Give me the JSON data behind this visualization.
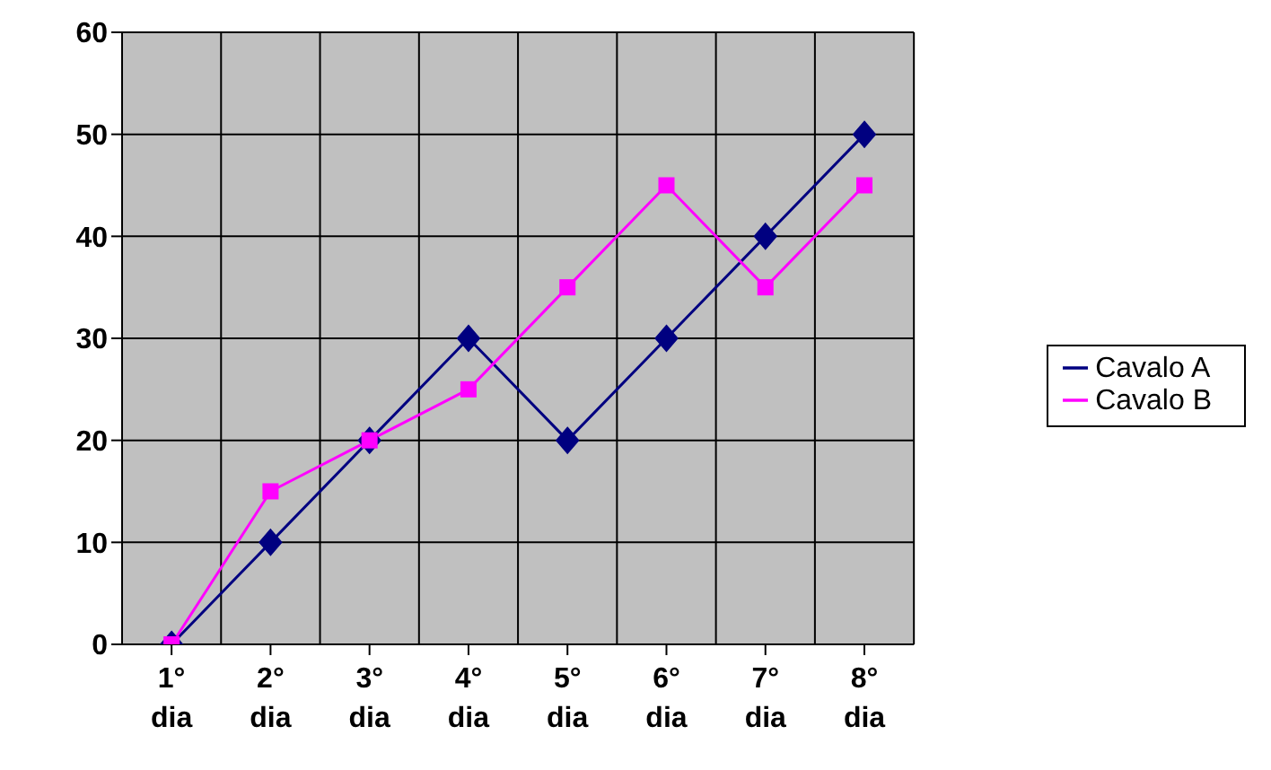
{
  "chart_data": {
    "type": "line",
    "categories": [
      "1° dia",
      "2° dia",
      "3° dia",
      "4° dia",
      "5° dia",
      "6° dia",
      "7° dia",
      "8° dia"
    ],
    "series": [
      {
        "name": "Cavalo A",
        "color": "#000080",
        "marker": "diamond",
        "values": [
          0,
          10,
          20,
          30,
          20,
          30,
          40,
          50
        ]
      },
      {
        "name": "Cavalo B",
        "color": "#ff00ff",
        "marker": "square",
        "values": [
          0,
          15,
          20,
          25,
          35,
          45,
          35,
          45
        ]
      }
    ],
    "ylim": [
      0,
      60
    ],
    "yticks": [
      0,
      10,
      20,
      30,
      40,
      50,
      60
    ],
    "grid": true,
    "legend": "right"
  }
}
